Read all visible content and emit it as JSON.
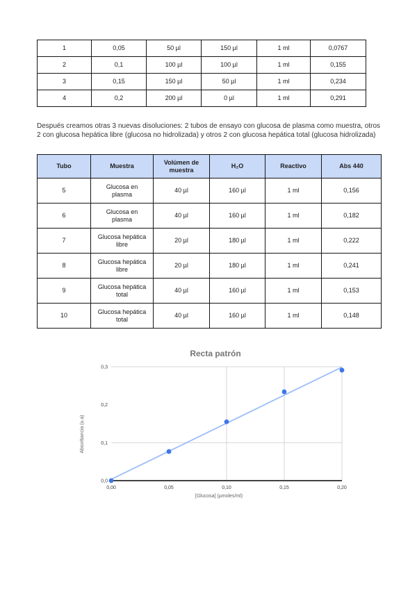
{
  "paragraph": "Después creamos otras 3 nuevas disoluciones: 2 tubos de ensayo con glucosa de plasma como muestra, otros 2 con glucosa hepática libre (glucosa no hidrolizada) y otros 2 con glucosa hepática total (glucosa hidrolizada)",
  "table1": {
    "rows": [
      [
        "1",
        "0,05",
        "50 µl",
        "150 µl",
        "1 ml",
        "0,0767"
      ],
      [
        "2",
        "0,1",
        "100 µl",
        "100 µl",
        "1 ml",
        "0,155"
      ],
      [
        "3",
        "0,15",
        "150 µl",
        "50 µl",
        "1 ml",
        "0,234"
      ],
      [
        "4",
        "0,2",
        "200 µl",
        "0 µl",
        "1 ml",
        "0,291"
      ]
    ]
  },
  "table2": {
    "header_bg": "#c9daf8",
    "headers": [
      "Tubo",
      "Muestra",
      "Volúmen de muestra",
      "H₂O",
      "Reactivo",
      "Abs 440"
    ],
    "rows": [
      [
        "5",
        "Glucosa en plasma",
        "40 µl",
        "160 µl",
        "1 ml",
        "0,156"
      ],
      [
        "6",
        "Glucosa en plasma",
        "40 µl",
        "160 µl",
        "1 ml",
        "0,182"
      ],
      [
        "7",
        "Glucosa hepática libre",
        "20 µl",
        "180 µl",
        "1 ml",
        "0,222"
      ],
      [
        "8",
        "Glucosa hepática libre",
        "20 µl",
        "180 µl",
        "1 ml",
        "0,241"
      ],
      [
        "9",
        "Glucosa hepática total",
        "40 µl",
        "160 µl",
        "1 ml",
        "0,153"
      ],
      [
        "10",
        "Glucosa hepática total",
        "40 µl",
        "160 µl",
        "1 ml",
        "0,148"
      ]
    ]
  },
  "chart_data": {
    "type": "scatter",
    "title": "Recta patrón",
    "xlabel": "[Glucosa] (µmoles/ml)",
    "ylabel": "Absorbancia (u.a)",
    "x": [
      0,
      0.05,
      0.1,
      0.15,
      0.2
    ],
    "y": [
      0,
      0.0767,
      0.155,
      0.234,
      0.291
    ],
    "trend": {
      "x": [
        0,
        0.2
      ],
      "y": [
        0.0035,
        0.299
      ]
    },
    "x_tick_values": [
      0,
      0.05,
      0.1,
      0.15,
      0.2
    ],
    "x_ticks": [
      "0,00",
      "0,05",
      "0,10",
      "0,15",
      "0,20"
    ],
    "y_tick_values": [
      0,
      0.1,
      0.2,
      0.3
    ],
    "y_ticks": [
      "0,0",
      "0,1",
      "0,2",
      "0,3"
    ],
    "xlim": [
      0,
      0.2
    ],
    "ylim": [
      0,
      0.3
    ],
    "h_gridlines": [
      0.1,
      0.3
    ],
    "v_gridlines": [
      0.1,
      0.15,
      0.2
    ],
    "legend": "none",
    "grid": "partial",
    "colors": {
      "points": "#3d77e8",
      "trendline": "#9bbdf9",
      "grid": "#d6d6d6",
      "axis": "#424242",
      "title": "#757575",
      "tick": "#424242",
      "axis_title": "#616161"
    }
  }
}
